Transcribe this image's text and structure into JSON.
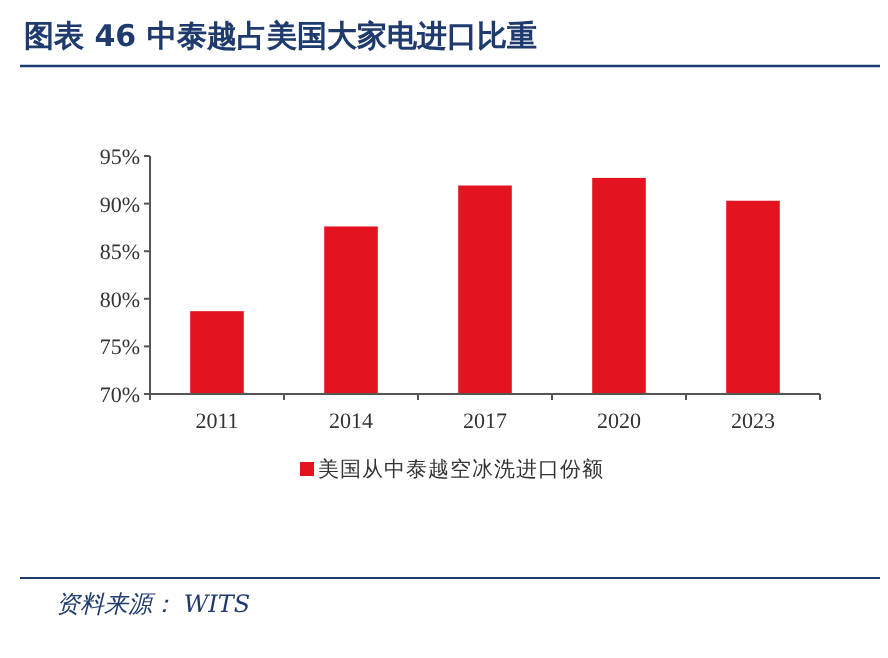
{
  "chart_data": {
    "type": "bar",
    "title": "图表 46    中泰越占美国大家电进口比重",
    "categories": [
      "2011",
      "2014",
      "2017",
      "2020",
      "2023"
    ],
    "series": [
      {
        "name": "美国从中泰越空冰洗进口份额",
        "color": "#e3141f",
        "values": [
          78.7,
          87.6,
          91.9,
          92.7,
          90.3
        ]
      }
    ],
    "ylim": [
      70,
      95
    ],
    "yticks": [
      {
        "value": 70,
        "label": "70%"
      },
      {
        "value": 75,
        "label": "75%"
      },
      {
        "value": 80,
        "label": "80%"
      },
      {
        "value": 85,
        "label": "85%"
      },
      {
        "value": 90,
        "label": "90%"
      },
      {
        "value": 95,
        "label": "95%"
      }
    ],
    "legend": "bottom",
    "annotations": [
      "资料来源：  WITS"
    ]
  }
}
